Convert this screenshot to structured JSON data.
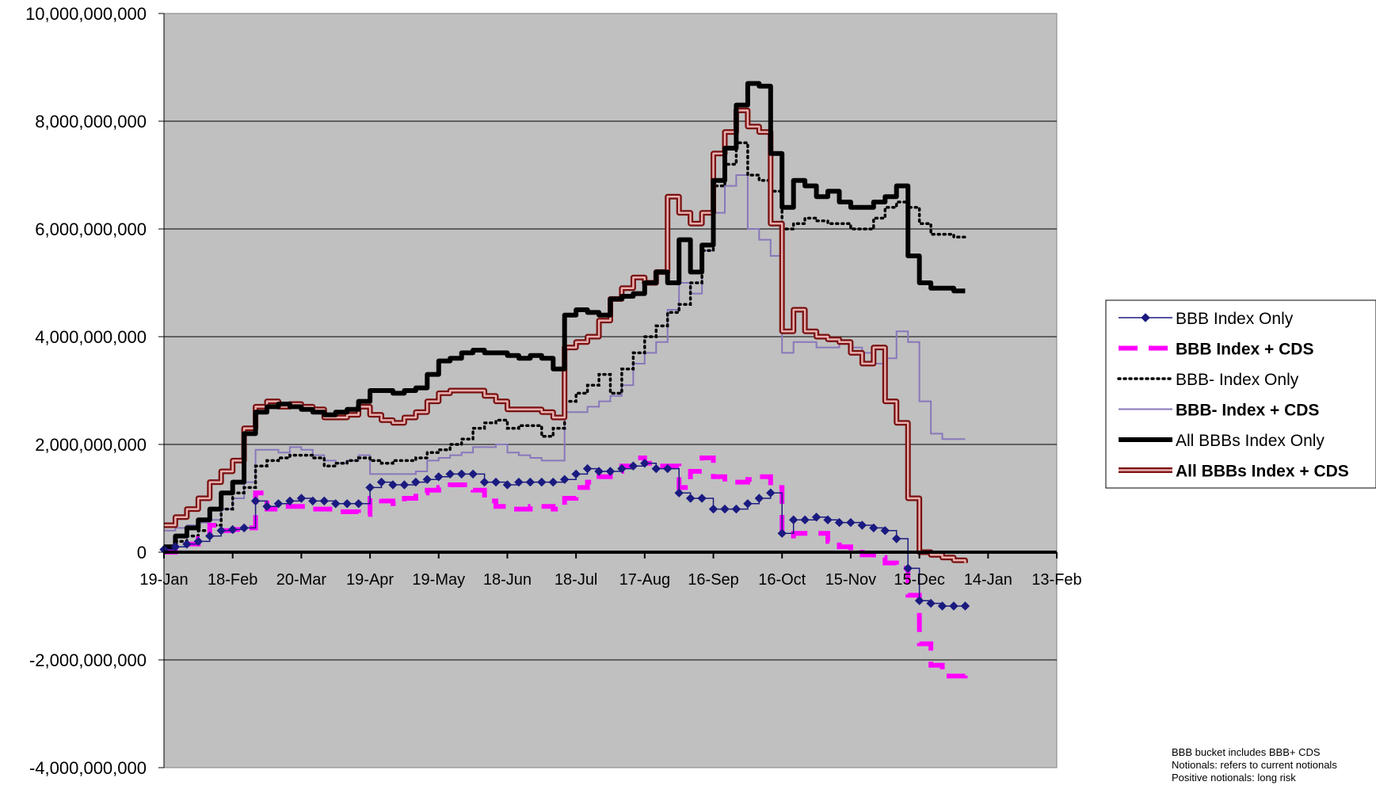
{
  "chart_data": {
    "type": "line",
    "title": "",
    "xlabel": "",
    "ylabel": "",
    "ylim": [
      -4000000000,
      10000000000
    ],
    "yticks": [
      10000000000,
      8000000000,
      6000000000,
      4000000000,
      2000000000,
      0,
      -2000000000,
      -4000000000
    ],
    "ytick_labels": [
      "10,000,000,000",
      "8,000,000,000",
      "6,000,000,000",
      "4,000,000,000",
      "2,000,000,000",
      "0",
      "-2,000,000,000",
      "-4,000,000,000"
    ],
    "xlim": [
      0,
      390
    ],
    "xtick_positions": [
      0,
      30,
      60,
      90,
      120,
      150,
      180,
      210,
      240,
      270,
      300,
      330,
      360,
      390
    ],
    "xtick_labels": [
      "19-Jan",
      "18-Feb",
      "20-Mar",
      "19-Apr",
      "19-May",
      "18-Jun",
      "18-Jul",
      "17-Aug",
      "16-Sep",
      "16-Oct",
      "15-Nov",
      "15-Dec",
      "14-Jan",
      "13-Feb"
    ],
    "grid": true,
    "legend_position": "right",
    "notes": [
      "BBB bucket includes BBB+ CDS",
      "Notionals: refers to current notionals",
      "Positive notionals: long risk"
    ],
    "series": [
      {
        "name": "BBB Index Only",
        "bold_label": false,
        "color": "#1a1a80",
        "style": "diamond-line",
        "x": [
          0,
          5,
          10,
          15,
          20,
          25,
          30,
          35,
          40,
          45,
          50,
          55,
          60,
          65,
          70,
          75,
          80,
          85,
          90,
          95,
          100,
          105,
          110,
          115,
          120,
          125,
          130,
          135,
          140,
          145,
          150,
          155,
          160,
          165,
          170,
          175,
          180,
          185,
          190,
          195,
          200,
          205,
          210,
          215,
          220,
          225,
          230,
          235,
          240,
          245,
          250,
          255,
          260,
          265,
          270,
          275,
          280,
          285,
          290,
          295,
          300,
          305,
          310,
          315,
          320,
          325,
          330,
          335,
          340,
          345,
          350
        ],
        "y": [
          50000000,
          100000000,
          150000000,
          200000000,
          300000000,
          400000000,
          420000000,
          450000000,
          950000000,
          850000000,
          900000000,
          950000000,
          1000000000,
          950000000,
          950000000,
          900000000,
          900000000,
          900000000,
          1200000000,
          1300000000,
          1250000000,
          1250000000,
          1300000000,
          1350000000,
          1400000000,
          1450000000,
          1450000000,
          1450000000,
          1300000000,
          1300000000,
          1250000000,
          1300000000,
          1300000000,
          1300000000,
          1300000000,
          1350000000,
          1450000000,
          1550000000,
          1500000000,
          1500000000,
          1550000000,
          1600000000,
          1650000000,
          1550000000,
          1550000000,
          1100000000,
          1000000000,
          1000000000,
          800000000,
          800000000,
          800000000,
          900000000,
          1000000000,
          1100000000,
          350000000,
          600000000,
          600000000,
          650000000,
          600000000,
          550000000,
          550000000,
          500000000,
          450000000,
          400000000,
          250000000,
          -300000000,
          -900000000,
          -950000000,
          -1000000000,
          -1000000000,
          -1000000000
        ]
      },
      {
        "name": "BBB Index + CDS",
        "bold_label": true,
        "color": "#ff00ff",
        "style": "dashed",
        "x": [
          0,
          5,
          10,
          15,
          20,
          25,
          30,
          35,
          40,
          45,
          50,
          55,
          60,
          65,
          70,
          75,
          80,
          85,
          90,
          95,
          100,
          105,
          110,
          115,
          120,
          125,
          130,
          135,
          140,
          145,
          150,
          155,
          160,
          165,
          170,
          175,
          180,
          185,
          190,
          195,
          200,
          205,
          210,
          215,
          220,
          225,
          230,
          235,
          240,
          245,
          250,
          255,
          260,
          265,
          270,
          275,
          280,
          285,
          290,
          295,
          300,
          305,
          310,
          315,
          320,
          325,
          330,
          335,
          340,
          345,
          350
        ],
        "y": [
          0,
          100000000,
          150000000,
          250000000,
          500000000,
          400000000,
          420000000,
          450000000,
          1100000000,
          800000000,
          850000000,
          850000000,
          850000000,
          800000000,
          800000000,
          750000000,
          750000000,
          700000000,
          1000000000,
          950000000,
          900000000,
          1000000000,
          1100000000,
          1150000000,
          1200000000,
          1250000000,
          1250000000,
          1150000000,
          950000000,
          850000000,
          800000000,
          800000000,
          850000000,
          850000000,
          800000000,
          1000000000,
          1200000000,
          1300000000,
          1400000000,
          1500000000,
          1600000000,
          1750000000,
          1650000000,
          1600000000,
          1600000000,
          1200000000,
          1500000000,
          1750000000,
          1400000000,
          1300000000,
          1300000000,
          1350000000,
          1400000000,
          1200000000,
          300000000,
          350000000,
          350000000,
          350000000,
          200000000,
          100000000,
          0,
          -50000000,
          -100000000,
          -200000000,
          -300000000,
          -800000000,
          -1700000000,
          -2100000000,
          -2300000000,
          -2300000000,
          -2250000000
        ]
      },
      {
        "name": "BBB- Index Only",
        "bold_label": false,
        "color": "#000000",
        "style": "dotted",
        "x": [
          0,
          5,
          10,
          15,
          20,
          25,
          30,
          35,
          40,
          45,
          50,
          55,
          60,
          65,
          70,
          75,
          80,
          85,
          90,
          95,
          100,
          105,
          110,
          115,
          120,
          125,
          130,
          135,
          140,
          145,
          150,
          155,
          160,
          165,
          170,
          175,
          180,
          185,
          190,
          195,
          200,
          205,
          210,
          215,
          220,
          225,
          230,
          235,
          240,
          245,
          250,
          255,
          260,
          265,
          270,
          275,
          280,
          285,
          290,
          295,
          300,
          305,
          310,
          315,
          320,
          325,
          330,
          335,
          340,
          345,
          350
        ],
        "y": [
          100000000,
          200000000,
          300000000,
          400000000,
          500000000,
          800000000,
          1100000000,
          1200000000,
          1600000000,
          1700000000,
          1750000000,
          1800000000,
          1800000000,
          1750000000,
          1600000000,
          1650000000,
          1700000000,
          1750000000,
          1700000000,
          1650000000,
          1700000000,
          1700000000,
          1750000000,
          1850000000,
          1900000000,
          2000000000,
          2100000000,
          2300000000,
          2400000000,
          2450000000,
          2300000000,
          2350000000,
          2350000000,
          2150000000,
          2300000000,
          2800000000,
          2950000000,
          3100000000,
          3300000000,
          2950000000,
          3400000000,
          3700000000,
          4000000000,
          4200000000,
          4450000000,
          4600000000,
          5000000000,
          5600000000,
          6800000000,
          7200000000,
          7600000000,
          7000000000,
          6900000000,
          6700000000,
          6000000000,
          6100000000,
          6200000000,
          6150000000,
          6100000000,
          6100000000,
          6000000000,
          6000000000,
          6200000000,
          6400000000,
          6500000000,
          6400000000,
          6100000000,
          5900000000,
          5900000000,
          5850000000,
          5800000000
        ]
      },
      {
        "name": "BBB- Index + CDS",
        "bold_label": true,
        "color": "#8877bb",
        "style": "solid",
        "x": [
          0,
          5,
          10,
          15,
          20,
          25,
          30,
          35,
          40,
          45,
          50,
          55,
          60,
          65,
          70,
          75,
          80,
          85,
          90,
          95,
          100,
          105,
          110,
          115,
          120,
          125,
          130,
          135,
          140,
          145,
          150,
          155,
          160,
          165,
          170,
          175,
          180,
          185,
          190,
          195,
          200,
          205,
          210,
          215,
          220,
          225,
          230,
          235,
          240,
          245,
          250,
          255,
          260,
          265,
          270,
          275,
          280,
          285,
          290,
          295,
          300,
          305,
          310,
          315,
          320,
          325,
          330,
          335,
          340,
          345,
          350
        ],
        "y": [
          400000000,
          450000000,
          500000000,
          550000000,
          600000000,
          800000000,
          1000000000,
          1300000000,
          1900000000,
          1900000000,
          1850000000,
          1950000000,
          1900000000,
          1800000000,
          1700000000,
          1650000000,
          1700000000,
          1800000000,
          1450000000,
          1450000000,
          1450000000,
          1450000000,
          1500000000,
          1700000000,
          1750000000,
          1800000000,
          1850000000,
          1950000000,
          1950000000,
          2000000000,
          1850000000,
          1800000000,
          1750000000,
          1700000000,
          1700000000,
          2600000000,
          2600000000,
          2700000000,
          2800000000,
          2900000000,
          3100000000,
          3500000000,
          3700000000,
          3900000000,
          4500000000,
          5000000000,
          4800000000,
          5600000000,
          6300000000,
          6800000000,
          7000000000,
          6000000000,
          5800000000,
          5500000000,
          3700000000,
          3900000000,
          3900000000,
          3800000000,
          3800000000,
          3900000000,
          3800000000,
          3700000000,
          3500000000,
          3600000000,
          4100000000,
          3900000000,
          2800000000,
          2200000000,
          2100000000,
          2100000000,
          2100000000
        ]
      },
      {
        "name": "All BBBs Index Only",
        "bold_label": false,
        "color": "#000000",
        "style": "thick",
        "x": [
          0,
          5,
          10,
          15,
          20,
          25,
          30,
          35,
          40,
          45,
          50,
          55,
          60,
          65,
          70,
          75,
          80,
          85,
          90,
          95,
          100,
          105,
          110,
          115,
          120,
          125,
          130,
          135,
          140,
          145,
          150,
          155,
          160,
          165,
          170,
          175,
          180,
          185,
          190,
          195,
          200,
          205,
          210,
          215,
          220,
          225,
          230,
          235,
          240,
          245,
          250,
          255,
          260,
          265,
          270,
          275,
          280,
          285,
          290,
          295,
          300,
          305,
          310,
          315,
          320,
          325,
          330,
          335,
          340,
          345,
          350
        ],
        "y": [
          100000000,
          300000000,
          450000000,
          600000000,
          800000000,
          1100000000,
          1300000000,
          2200000000,
          2600000000,
          2700000000,
          2750000000,
          2700000000,
          2650000000,
          2600000000,
          2550000000,
          2600000000,
          2650000000,
          2800000000,
          3000000000,
          3000000000,
          2950000000,
          3000000000,
          3050000000,
          3300000000,
          3550000000,
          3600000000,
          3700000000,
          3750000000,
          3700000000,
          3700000000,
          3650000000,
          3600000000,
          3650000000,
          3600000000,
          3400000000,
          4400000000,
          4500000000,
          4450000000,
          4400000000,
          4700000000,
          4750000000,
          4800000000,
          5000000000,
          5200000000,
          5000000000,
          5800000000,
          5200000000,
          5700000000,
          6900000000,
          7500000000,
          8300000000,
          8700000000,
          8650000000,
          7400000000,
          6400000000,
          6900000000,
          6800000000,
          6600000000,
          6700000000,
          6500000000,
          6400000000,
          6400000000,
          6500000000,
          6600000000,
          6800000000,
          5500000000,
          5000000000,
          4900000000,
          4900000000,
          4850000000,
          4850000000
        ]
      },
      {
        "name": "All BBBs Index + CDS",
        "bold_label": true,
        "color": "#7a1010",
        "style": "double",
        "x": [
          0,
          5,
          10,
          15,
          20,
          25,
          30,
          35,
          40,
          45,
          50,
          55,
          60,
          65,
          70,
          75,
          80,
          85,
          90,
          95,
          100,
          105,
          110,
          115,
          120,
          125,
          130,
          135,
          140,
          145,
          150,
          155,
          160,
          165,
          170,
          175,
          180,
          185,
          190,
          195,
          200,
          205,
          210,
          215,
          220,
          225,
          230,
          235,
          240,
          245,
          250,
          255,
          260,
          265,
          270,
          275,
          280,
          285,
          290,
          295,
          300,
          305,
          310,
          315,
          320,
          325,
          330,
          335,
          340,
          345,
          350
        ],
        "y": [
          500000000,
          650000000,
          800000000,
          1000000000,
          1300000000,
          1500000000,
          1700000000,
          2300000000,
          2700000000,
          2800000000,
          2700000000,
          2750000000,
          2700000000,
          2650000000,
          2500000000,
          2500000000,
          2550000000,
          2700000000,
          2550000000,
          2450000000,
          2400000000,
          2500000000,
          2600000000,
          2800000000,
          2950000000,
          3000000000,
          3000000000,
          3000000000,
          2900000000,
          2800000000,
          2650000000,
          2650000000,
          2650000000,
          2600000000,
          2500000000,
          3800000000,
          3900000000,
          4000000000,
          4300000000,
          4700000000,
          4900000000,
          5100000000,
          5000000000,
          5200000000,
          6600000000,
          6300000000,
          6100000000,
          6300000000,
          7400000000,
          7800000000,
          8200000000,
          7900000000,
          7800000000,
          6100000000,
          4100000000,
          4500000000,
          4100000000,
          4000000000,
          3950000000,
          3900000000,
          3700000000,
          3500000000,
          3800000000,
          2800000000,
          2400000000,
          1000000000,
          0,
          -50000000,
          -100000000,
          -150000000,
          -200000000
        ]
      }
    ]
  }
}
